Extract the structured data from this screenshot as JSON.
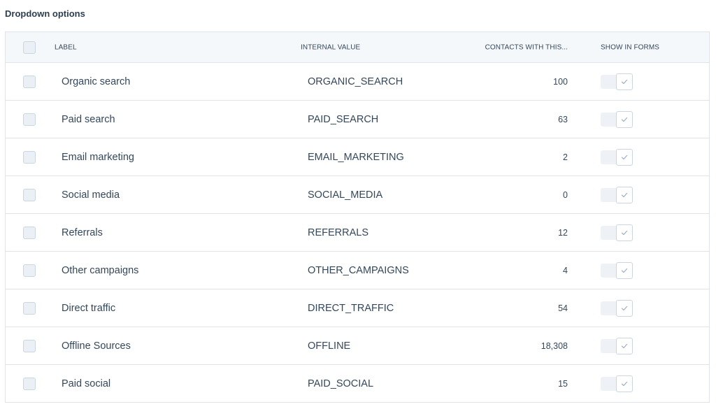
{
  "title": "Dropdown options",
  "columns": {
    "label": "LABEL",
    "internal_value": "INTERNAL VALUE",
    "contacts": "CONTACTS WITH THIS...",
    "show_in_forms": "SHOW IN FORMS"
  },
  "rows": [
    {
      "label": "Organic search",
      "internal_value": "ORGANIC_SEARCH",
      "contacts": "100",
      "show_in_forms": true
    },
    {
      "label": "Paid search",
      "internal_value": "PAID_SEARCH",
      "contacts": "63",
      "show_in_forms": true
    },
    {
      "label": "Email marketing",
      "internal_value": "EMAIL_MARKETING",
      "contacts": "2",
      "show_in_forms": true
    },
    {
      "label": "Social media",
      "internal_value": "SOCIAL_MEDIA",
      "contacts": "0",
      "show_in_forms": true
    },
    {
      "label": "Referrals",
      "internal_value": "REFERRALS",
      "contacts": "12",
      "show_in_forms": true
    },
    {
      "label": "Other campaigns",
      "internal_value": "OTHER_CAMPAIGNS",
      "contacts": "4",
      "show_in_forms": true
    },
    {
      "label": "Direct traffic",
      "internal_value": "DIRECT_TRAFFIC",
      "contacts": "54",
      "show_in_forms": true
    },
    {
      "label": "Offline Sources",
      "internal_value": "OFFLINE",
      "contacts": "18,308",
      "show_in_forms": true
    },
    {
      "label": "Paid social",
      "internal_value": "PAID_SOCIAL",
      "contacts": "15",
      "show_in_forms": true
    }
  ],
  "icons": {
    "row_checkbox": "checkbox-icon",
    "toggle_check": "check-icon"
  },
  "colors": {
    "border": "#dfe3eb",
    "header_bg": "#f5f8fa",
    "text": "#33475b",
    "checkbox_fill": "#eaf0f6"
  }
}
